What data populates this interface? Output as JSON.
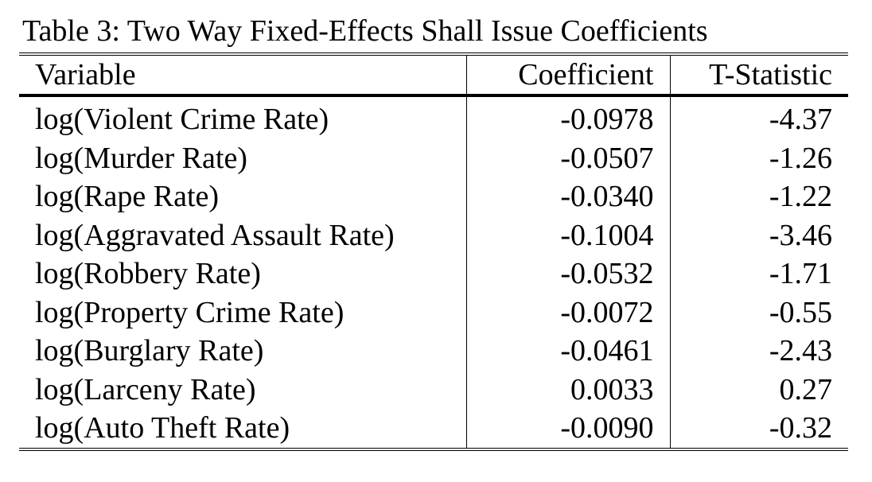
{
  "table": {
    "caption": "Table 3: Two Way Fixed-Effects Shall Issue Coefficients",
    "headers": {
      "variable": "Variable",
      "coefficient": "Coefficient",
      "tstat": "T-Statistic"
    },
    "rows": [
      {
        "variable": "log(Violent Crime Rate)",
        "coefficient": "-0.0978",
        "tstat": "-4.37"
      },
      {
        "variable": "log(Murder Rate)",
        "coefficient": "-0.0507",
        "tstat": "-1.26"
      },
      {
        "variable": "log(Rape Rate)",
        "coefficient": "-0.0340",
        "tstat": "-1.22"
      },
      {
        "variable": "log(Aggravated Assault Rate)",
        "coefficient": "-0.1004",
        "tstat": "-3.46"
      },
      {
        "variable": "log(Robbery Rate)",
        "coefficient": "-0.0532",
        "tstat": "-1.71"
      },
      {
        "variable": "log(Property Crime Rate)",
        "coefficient": "-0.0072",
        "tstat": "-0.55"
      },
      {
        "variable": "log(Burglary Rate)",
        "coefficient": "-0.0461",
        "tstat": "-2.43"
      },
      {
        "variable": "log(Larceny Rate)",
        "coefficient": "0.0033",
        "tstat": "0.27"
      },
      {
        "variable": "log(Auto Theft Rate)",
        "coefficient": "-0.0090",
        "tstat": "-0.32"
      }
    ]
  }
}
